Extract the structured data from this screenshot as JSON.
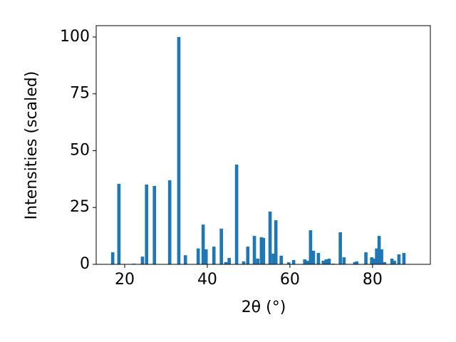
{
  "chart_data": {
    "type": "bar",
    "xlabel": "2θ (°)",
    "ylabel": "Intensities (scaled)",
    "color": "#1f77b4",
    "x": [
      17.1,
      18.6,
      22.2,
      24.3,
      25.3,
      27.2,
      30.9,
      33.1,
      34.7,
      37.8,
      39.0,
      39.7,
      41.6,
      43.4,
      44.5,
      45.3,
      47.1,
      48.8,
      49.8,
      51.4,
      52.2,
      53.1,
      53.6,
      55.2,
      56.0,
      56.6,
      57.9,
      59.7,
      60.9,
      63.6,
      64.3,
      65.0,
      65.7,
      66.9,
      68.1,
      68.8,
      69.5,
      70.5,
      72.2,
      73.1,
      75.7,
      76.2,
      78.4,
      79.8,
      80.3,
      81.0,
      81.6,
      82.2,
      82.9,
      84.7,
      85.3,
      86.4,
      87.6
    ],
    "values": [
      5.3,
      35.4,
      0.3,
      3.4,
      35.1,
      34.5,
      37.0,
      100,
      4.0,
      7.0,
      17.5,
      6.6,
      7.8,
      15.7,
      1.0,
      2.8,
      43.9,
      1.3,
      7.8,
      12.5,
      2.5,
      11.9,
      11.6,
      23.2,
      4.7,
      19.4,
      3.8,
      0.9,
      1.9,
      2.2,
      1.6,
      15.0,
      6.0,
      5.0,
      1.6,
      2.2,
      2.5,
      0.3,
      14.1,
      3.1,
      1.0,
      1.3,
      5.3,
      3.1,
      2.5,
      7.0,
      12.5,
      6.6,
      1.0,
      2.5,
      1.6,
      4.4,
      5.0
    ],
    "xlim": [
      13.1,
      94.0
    ],
    "xticks": [
      20,
      40,
      60,
      80
    ],
    "ylim": [
      0,
      105
    ],
    "yticks": [
      0,
      25,
      50,
      75,
      100
    ]
  }
}
